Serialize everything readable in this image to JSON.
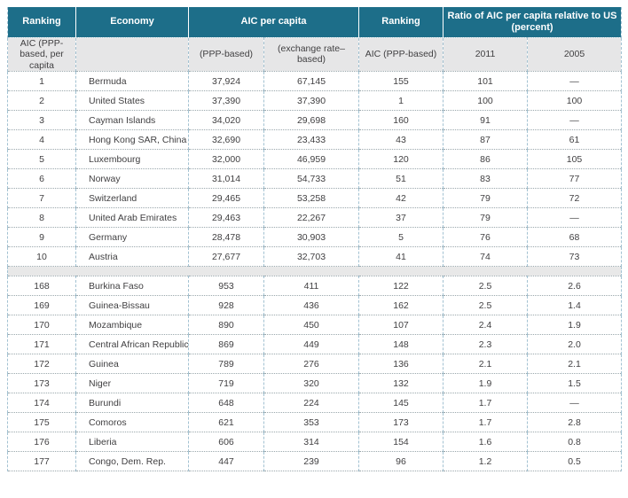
{
  "colors": {
    "header_teal": "#1d6e89",
    "header_text": "#ffffff",
    "subheader_gray": "#e6e6e7",
    "band_gray": "#e8e8e8",
    "body_text": "#414042",
    "column_border": "#a3c2d2",
    "row_border": "#9aa7ac"
  },
  "header": {
    "ranking_left": "Ranking",
    "economy": "Economy",
    "aic_group": "AIC per capita",
    "ranking_right": "Ranking",
    "ratio_group": "Ratio of AIC per capita relative to US (percent)"
  },
  "subheader": {
    "aic_ppp_per_capita": "AIC (PPP-based, per capita",
    "economy": "",
    "ppp_based": "(PPP-based)",
    "exchange_rate_based": "(exchange rate–based)",
    "aic_ppp_based": "AIC (PPP-based)",
    "y2011": "2011",
    "y2005": "2005"
  },
  "table": {
    "columns": [
      "Ranking",
      "Economy",
      "AIC per capita (PPP-based)",
      "AIC per capita (exchange rate–based)",
      "Ranking AIC (PPP-based)",
      "Ratio 2011",
      "Ratio 2005"
    ],
    "rows_top": [
      [
        "1",
        "Bermuda",
        "37,924",
        "67,145",
        "155",
        "101",
        "—"
      ],
      [
        "2",
        "United States",
        "37,390",
        "37,390",
        "1",
        "100",
        "100"
      ],
      [
        "3",
        "Cayman Islands",
        "34,020",
        "29,698",
        "160",
        "91",
        "—"
      ],
      [
        "4",
        "Hong Kong SAR, China",
        "32,690",
        "23,433",
        "43",
        "87",
        "61"
      ],
      [
        "5",
        "Luxembourg",
        "32,000",
        "46,959",
        "120",
        "86",
        "105"
      ],
      [
        "6",
        "Norway",
        "31,014",
        "54,733",
        "51",
        "83",
        "77"
      ],
      [
        "7",
        "Switzerland",
        "29,465",
        "53,258",
        "42",
        "79",
        "72"
      ],
      [
        "8",
        "United Arab Emirates",
        "29,463",
        "22,267",
        "37",
        "79",
        "—"
      ],
      [
        "9",
        "Germany",
        "28,478",
        "30,903",
        "5",
        "76",
        "68"
      ],
      [
        "10",
        "Austria",
        "27,677",
        "32,703",
        "41",
        "74",
        "73"
      ]
    ],
    "rows_bottom": [
      [
        "168",
        "Burkina Faso",
        "953",
        "411",
        "122",
        "2.5",
        "2.6"
      ],
      [
        "169",
        "Guinea-Bissau",
        "928",
        "436",
        "162",
        "2.5",
        "1.4"
      ],
      [
        "170",
        "Mozambique",
        "890",
        "450",
        "107",
        "2.4",
        "1.9"
      ],
      [
        "171",
        "Central African Republic",
        "869",
        "449",
        "148",
        "2.3",
        "2.0"
      ],
      [
        "172",
        "Guinea",
        "789",
        "276",
        "136",
        "2.1",
        "2.1"
      ],
      [
        "173",
        "Niger",
        "719",
        "320",
        "132",
        "1.9",
        "1.5"
      ],
      [
        "174",
        "Burundi",
        "648",
        "224",
        "145",
        "1.7",
        "—"
      ],
      [
        "175",
        "Comoros",
        "621",
        "353",
        "173",
        "1.7",
        "2.8"
      ],
      [
        "176",
        "Liberia",
        "606",
        "314",
        "154",
        "1.6",
        "0.8"
      ],
      [
        "177",
        "Congo, Dem. Rep.",
        "447",
        "239",
        "96",
        "1.2",
        "0.5"
      ]
    ]
  }
}
